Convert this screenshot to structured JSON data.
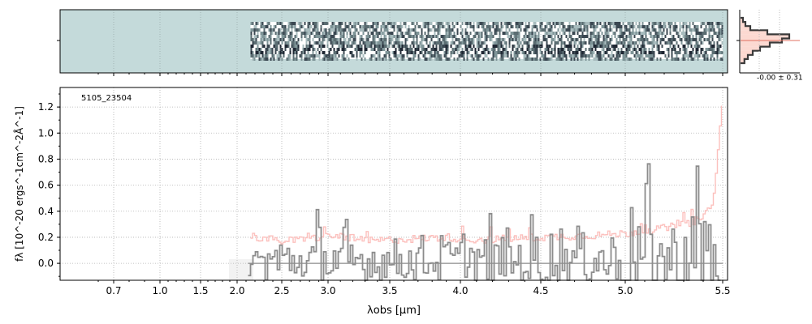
{
  "chart_data": [
    {
      "type": "heatmap",
      "panel": "2d-spectrum",
      "title": "",
      "x_ticks": [
        0.7,
        1.0,
        1.5,
        2.0,
        2.5,
        3.0,
        3.5,
        4.0,
        4.5,
        5.0,
        5.5
      ],
      "data_start_um": 2.15,
      "data_end_um": 5.5,
      "background_color": "#c4dada",
      "grid": true
    },
    {
      "type": "line",
      "panel": "1d-spectrum",
      "annotation": "5105_23504",
      "xlabel": "λobs [μm]",
      "ylabel": "fλ [10^-20 ergs^-1cm^-2Å^-1]",
      "ylim": [
        -0.13,
        1.35
      ],
      "y_ticks": [
        "0.0",
        "0.2",
        "0.4",
        "0.6",
        "0.8",
        "1.0",
        "1.2"
      ],
      "y_tick_values": [
        0.0,
        0.2,
        0.4,
        0.6,
        0.8,
        1.0,
        1.2
      ],
      "x_ticks": [
        "0.7",
        "1.0",
        "1.5",
        "2.0",
        "2.5",
        "3.0",
        "3.5",
        "4.0",
        "4.5",
        "5.0",
        "5.5"
      ],
      "x_tick_values": [
        0.7,
        1.0,
        1.5,
        2.0,
        2.5,
        3.0,
        3.5,
        4.0,
        4.5,
        5.0,
        5.5
      ],
      "grid": true,
      "series": [
        {
          "role": "flux",
          "color": "#8c8c8c",
          "x": [
            2.15,
            2.3,
            2.5,
            2.7,
            2.9,
            3.1,
            3.3,
            3.5,
            3.7,
            3.9,
            4.1,
            4.3,
            4.5,
            4.7,
            4.9,
            5.0,
            5.1,
            5.2,
            5.3,
            5.4,
            5.5
          ],
          "values": [
            0.1,
            0.15,
            0.18,
            0.12,
            0.22,
            0.15,
            0.18,
            0.12,
            0.14,
            0.16,
            0.2,
            0.15,
            0.25,
            0.18,
            0.2,
            0.3,
            0.4,
            0.22,
            0.35,
            0.5,
            0.45
          ]
        },
        {
          "role": "error",
          "color": "#fcc0bd",
          "x": [
            2.15,
            2.3,
            2.5,
            2.7,
            2.9,
            3.1,
            3.3,
            3.5,
            3.7,
            3.9,
            4.1,
            4.3,
            4.5,
            4.7,
            4.9,
            5.0,
            5.1,
            5.2,
            5.3,
            5.4,
            5.45,
            5.5
          ],
          "values": [
            0.21,
            0.19,
            0.17,
            0.18,
            0.2,
            0.21,
            0.17,
            0.18,
            0.19,
            0.2,
            0.18,
            0.19,
            0.2,
            0.21,
            0.22,
            0.23,
            0.25,
            0.27,
            0.3,
            0.35,
            0.5,
            1.3
          ]
        }
      ]
    },
    {
      "type": "area",
      "panel": "noise-histogram",
      "annotation": "-0.00 ± 0.31",
      "line_color": "#3a3a3a",
      "fill_color": "#fcd5cc",
      "values": [
        0.05,
        0.1,
        0.2,
        0.55,
        1.0,
        0.85,
        0.6,
        0.4,
        0.25,
        0.15,
        0.08
      ]
    }
  ]
}
